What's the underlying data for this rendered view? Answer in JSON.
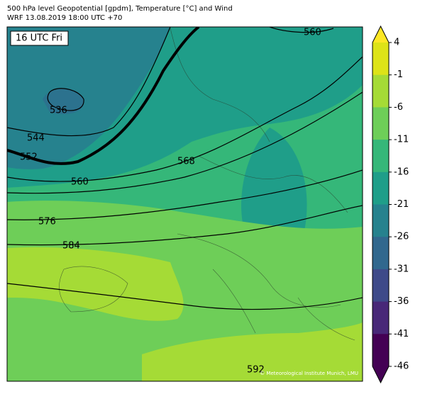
{
  "header": {
    "title": "500 hPa level Geopotential [gpdm], Temperature [°C] and Wind",
    "subtitle": "WRF 13.08.2019 18:00 UTC +70"
  },
  "map": {
    "time_label": "16 UTC Fri",
    "contour_labels": [
      "560",
      "536",
      "544",
      "552",
      "560",
      "568",
      "576",
      "584",
      "592"
    ],
    "credit": "© Meteorological Institute Munich, LMU"
  },
  "colorbar": {
    "ticks": [
      4,
      -1,
      -6,
      -11,
      -16,
      -21,
      -26,
      -31,
      -36,
      -41,
      -46
    ],
    "colors": [
      "#dde318",
      "#a5db36",
      "#6ece58",
      "#35b779",
      "#1f9e89",
      "#26828e",
      "#31688e",
      "#3e4a89",
      "#482878",
      "#440154"
    ],
    "extend_colors": [
      "#fde725",
      "#440154"
    ]
  }
}
